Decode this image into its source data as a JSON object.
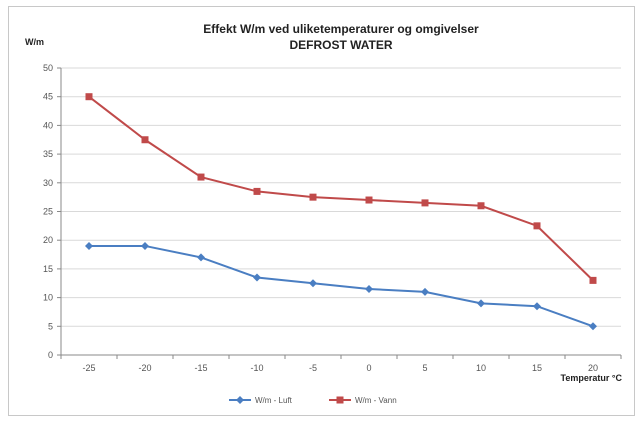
{
  "chart_data": {
    "type": "line",
    "title": "Effekt W/m ved uliketemperaturer og omgivelser",
    "subtitle": "DEFROST WATER",
    "ylabel": "W/m",
    "xlabel": "Temperatur °C",
    "categories": [
      "-25",
      "-20",
      "-15",
      "-10",
      "-5",
      "0",
      "5",
      "10",
      "15",
      "20"
    ],
    "ylim": [
      0,
      50
    ],
    "yticks": [
      "0",
      "5",
      "10",
      "15",
      "20",
      "25",
      "30",
      "35",
      "40",
      "45",
      "50"
    ],
    "grid": true,
    "legend_position": "bottom",
    "series": [
      {
        "name": "W/m - Luft",
        "color": "#4a7ec2",
        "marker": "diamond",
        "values": [
          19,
          19,
          17,
          13.5,
          12.5,
          11.5,
          11,
          9,
          8.5,
          5
        ]
      },
      {
        "name": "W/m - Vann",
        "color": "#c04a4a",
        "marker": "square",
        "values": [
          45,
          37.5,
          31,
          28.5,
          27.5,
          27,
          26.5,
          26,
          22.5,
          13
        ]
      }
    ]
  }
}
